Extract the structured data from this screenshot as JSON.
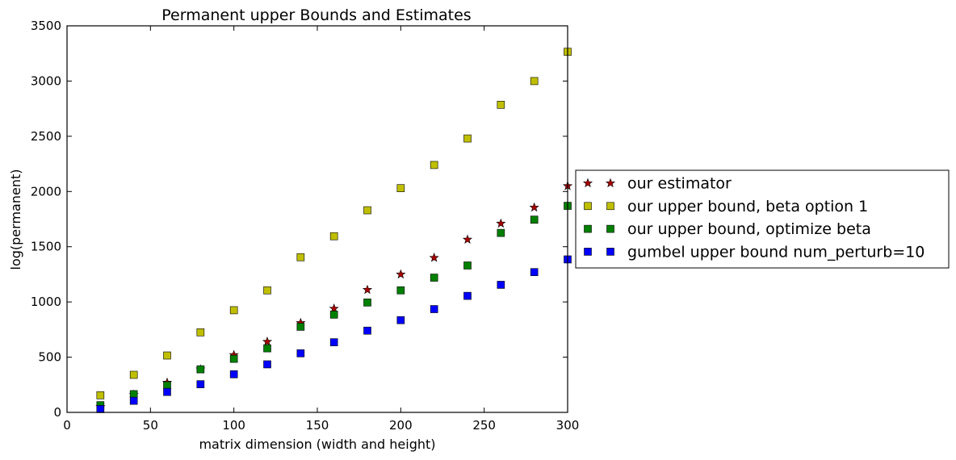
{
  "chart_data": {
    "type": "scatter",
    "title": "Permanent upper Bounds and Estimates",
    "xlabel": "matrix dimension (width and height)",
    "ylabel": "log(permanent)",
    "xlim": [
      0,
      300
    ],
    "ylim": [
      0,
      3500
    ],
    "x_ticks": [
      0,
      50,
      100,
      150,
      200,
      250,
      300
    ],
    "y_ticks": [
      0,
      500,
      1000,
      1500,
      2000,
      2500,
      3000,
      3500
    ],
    "grid": false,
    "legend_position": "outside right",
    "x": [
      20,
      40,
      60,
      80,
      100,
      120,
      140,
      160,
      180,
      200,
      220,
      240,
      260,
      280,
      300
    ],
    "series": [
      {
        "name": "our estimator",
        "marker": "star",
        "color": "#aa0000",
        "values": [
          50,
          160,
          270,
          390,
          520,
          640,
          810,
          940,
          1110,
          1250,
          1400,
          1565,
          1710,
          1855,
          2050
        ]
      },
      {
        "name": "our upper bound, beta option 1",
        "marker": "square",
        "color": "#bfbf00",
        "values": [
          155,
          340,
          515,
          725,
          925,
          1105,
          1405,
          1595,
          1830,
          2030,
          2240,
          2480,
          2785,
          3000,
          3265
        ]
      },
      {
        "name": "our upper bound, optimize beta",
        "marker": "square",
        "color": "#008000",
        "values": [
          65,
          165,
          245,
          390,
          485,
          580,
          775,
          885,
          995,
          1105,
          1220,
          1330,
          1625,
          1745,
          1870
        ]
      },
      {
        "name": "gumbel upper bound num_perturb=10",
        "marker": "square",
        "color": "#0000ff",
        "values": [
          30,
          105,
          185,
          255,
          345,
          435,
          535,
          635,
          740,
          835,
          935,
          1055,
          1155,
          1270,
          1385
        ]
      }
    ]
  }
}
